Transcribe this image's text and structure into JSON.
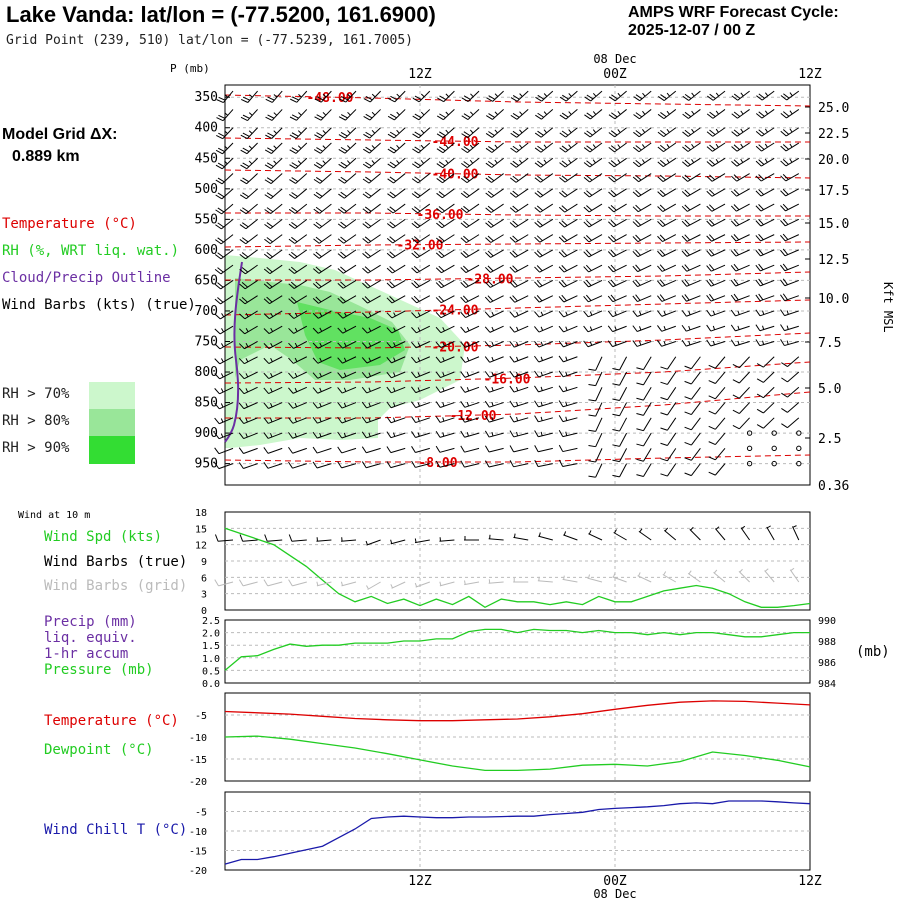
{
  "header": {
    "title": "Lake Vanda:  lat/lon = (-77.5200, 161.6900)",
    "subtitle": "Grid Point (239, 510) lat/lon = (-77.5239, 161.7005)",
    "cycle_line1": "AMPS WRF Forecast Cycle:",
    "cycle_line2": "2025-12-07 / 00  Z"
  },
  "model_grid": {
    "label": "Model Grid ΔX:",
    "value": "0.889 km"
  },
  "legend": {
    "temperature": "Temperature (°C)",
    "rh": "RH (%, WRT liq. wat.)",
    "cloud": "Cloud/Precip Outline",
    "wind_barbs": "Wind Barbs (kts) (true)",
    "rh_levels": [
      "RH > 70%",
      "RH > 80%",
      "RH > 90%"
    ]
  },
  "colors": {
    "temperature": "#dd0000",
    "rh70": "#ccf7cc",
    "rh80": "#99e699",
    "rh90": "#33dd33",
    "cloud": "#6b2fa3",
    "green_line": "#22cc22",
    "windchill": "#1a1aaa",
    "grid_barbs": "#bbbbbb"
  },
  "time_axis": {
    "top_labels": [
      "12Z",
      "00Z",
      "12Z"
    ],
    "date_label": "08 Dec",
    "bottom_labels": [
      "12Z",
      "00Z",
      "12Z"
    ]
  },
  "axes": {
    "pressure_unit": "P (mb)",
    "pressure_ticks": [
      "350",
      "400",
      "450",
      "500",
      "550",
      "600",
      "650",
      "700",
      "750",
      "800",
      "850",
      "900",
      "950"
    ],
    "height_unit": "Kft MSL",
    "height_ticks": [
      "25.0",
      "22.5",
      "20.0",
      "17.5",
      "15.0",
      "12.5",
      "10.0",
      "7.5",
      "5.0",
      "2.5",
      "0.36"
    ]
  },
  "panels": {
    "wind": {
      "title": "Wind at 10 m",
      "labels": [
        "Wind Spd (kts)",
        "Wind Barbs (true)",
        "Wind Barbs (grid)"
      ],
      "ticks": [
        "18",
        "15",
        "12",
        "9",
        "6",
        "3",
        "0"
      ]
    },
    "precip": {
      "labels": [
        "Precip (mm)",
        "liq. equiv.",
        "1-hr accum",
        "Pressure (mb)"
      ],
      "left_ticks": [
        "2.5",
        "2.0",
        "1.5",
        "1.0",
        "0.5",
        "0.0"
      ],
      "right_ticks": [
        "990",
        "988",
        "986",
        "984"
      ],
      "right_unit": "(mb)"
    },
    "temperature": {
      "labels": [
        "Temperature (°C)",
        "Dewpoint (°C)"
      ],
      "ticks": [
        "-5",
        "-10",
        "-15",
        "-20"
      ]
    },
    "windchill": {
      "labels": [
        "Wind Chill T (°C)"
      ],
      "ticks": [
        "-5",
        "-10",
        "-15",
        "-20"
      ]
    }
  },
  "chart_data": [
    {
      "type": "line",
      "x": [
        0,
        2,
        4,
        6,
        8,
        10,
        12,
        14,
        16,
        18,
        20,
        22,
        24,
        26,
        28,
        30,
        32,
        34,
        36
      ],
      "isotherm_labels": [
        "-48.00",
        "-44.00",
        "-40.00",
        "-36.00",
        "-32.00",
        "-28.00",
        "-24.00",
        "-20.00",
        "-16.00",
        "-12.00",
        "-8.00"
      ],
      "ylim": [
        330,
        985
      ]
    },
    {
      "type": "line",
      "x": [
        0,
        1,
        2,
        3,
        4,
        5,
        6,
        7,
        8,
        9,
        10,
        11,
        12,
        13,
        14,
        15,
        16,
        17,
        18,
        19,
        20,
        21,
        22,
        23,
        24,
        25,
        26,
        27,
        28,
        29,
        30,
        31,
        32,
        33,
        34,
        35,
        36
      ],
      "series": [
        {
          "name": "Wind Spd (kts)",
          "values": [
            15,
            14,
            13,
            12,
            10,
            8,
            5.5,
            3,
            1.5,
            2.5,
            1.2,
            2,
            0.8,
            2,
            1,
            2.5,
            0.5,
            2,
            1.5,
            1.5,
            1,
            1.5,
            1,
            2.5,
            1.5,
            1.5,
            2.5,
            3.5,
            4,
            4.5,
            4,
            3,
            1.5,
            0.5,
            0.5,
            0.8,
            1.2
          ]
        }
      ],
      "ylim": [
        0,
        18
      ]
    },
    {
      "type": "line",
      "x": [
        0,
        1,
        2,
        3,
        4,
        5,
        6,
        7,
        8,
        9,
        10,
        11,
        12,
        13,
        14,
        15,
        16,
        17,
        18,
        19,
        20,
        21,
        22,
        23,
        24,
        25,
        26,
        27,
        28,
        29,
        30,
        31,
        32,
        33,
        34,
        35,
        36
      ],
      "series": [
        {
          "name": "Pressure (mb)",
          "values": [
            985.2,
            986.5,
            986.6,
            987.2,
            987.7,
            987.5,
            987.6,
            987.6,
            987.8,
            987.8,
            987.8,
            988.0,
            988.0,
            988.2,
            988.2,
            988.9,
            989.1,
            989.1,
            988.8,
            989.1,
            989.0,
            989.0,
            988.8,
            989.0,
            988.8,
            988.8,
            988.6,
            988.8,
            988.6,
            988.8,
            988.8,
            988.6,
            988.4,
            988.4,
            988.6,
            988.8,
            988.8
          ]
        }
      ],
      "y2lim": [
        984,
        990
      ],
      "ylim": [
        0,
        2.5
      ]
    },
    {
      "type": "line",
      "x": [
        0,
        2,
        4,
        6,
        8,
        10,
        12,
        14,
        16,
        18,
        20,
        22,
        24,
        26,
        28,
        30,
        32,
        34,
        36
      ],
      "series": [
        {
          "name": "Temperature (°C)",
          "values": [
            -4.2,
            -4.5,
            -4.8,
            -5.3,
            -5.8,
            -6.1,
            -6.3,
            -6.3,
            -6.1,
            -5.9,
            -5.4,
            -4.7,
            -3.7,
            -2.8,
            -2.1,
            -1.8,
            -1.9,
            -2.3,
            -2.7
          ]
        },
        {
          "name": "Dewpoint (°C)",
          "values": [
            -10,
            -9.8,
            -10.5,
            -11.5,
            -12.5,
            -13.8,
            -15.2,
            -16.6,
            -17.6,
            -17.6,
            -17.3,
            -16.4,
            -16.2,
            -16.6,
            -15.6,
            -13.4,
            -14.2,
            -15.3,
            -16.8
          ]
        }
      ],
      "ylim": [
        -20,
        0
      ]
    },
    {
      "type": "line",
      "x": [
        0,
        1,
        2,
        3,
        4,
        5,
        6,
        7,
        8,
        9,
        10,
        11,
        12,
        13,
        14,
        15,
        16,
        17,
        18,
        19,
        20,
        21,
        22,
        23,
        24,
        25,
        26,
        27,
        28,
        29,
        30,
        31,
        32,
        33,
        34,
        35,
        36
      ],
      "series": [
        {
          "name": "Wind Chill T (°C)",
          "values": [
            -18.5,
            -17.3,
            -17.3,
            -16.6,
            -15.7,
            -14.8,
            -13.9,
            -11.7,
            -9.5,
            -6.8,
            -6.4,
            -6.2,
            -6.4,
            -6.6,
            -6.6,
            -6.4,
            -6.4,
            -6.3,
            -6.2,
            -6.2,
            -5.8,
            -5.5,
            -5.2,
            -4.5,
            -4.2,
            -4.0,
            -3.8,
            -3.5,
            -3.0,
            -2.8,
            -3.0,
            -2.3,
            -2.3,
            -2.3,
            -2.5,
            -2.8,
            -3.0
          ]
        }
      ],
      "ylim": [
        -20,
        0
      ]
    }
  ]
}
